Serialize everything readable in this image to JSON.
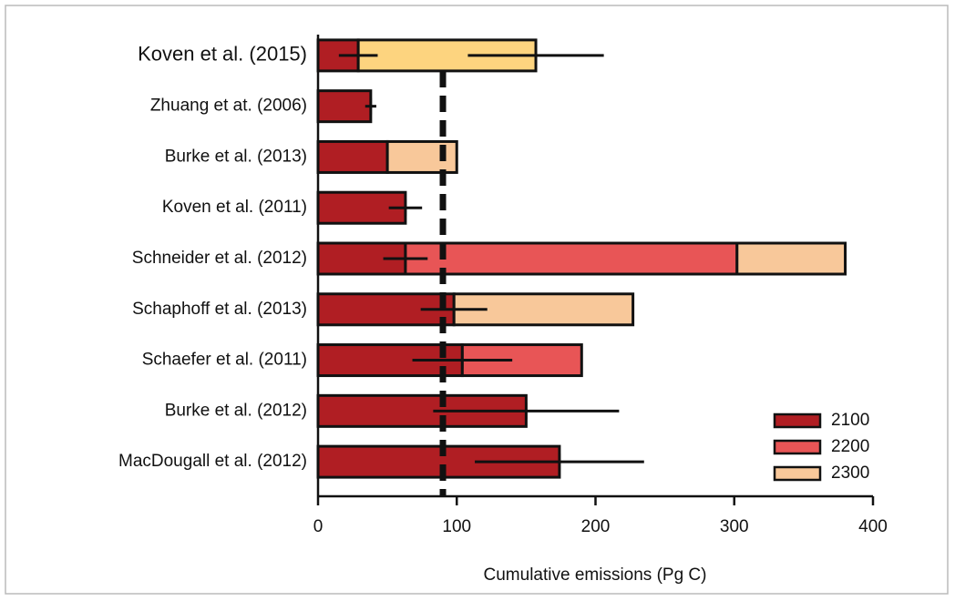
{
  "chart_data": {
    "type": "stacked-hbar",
    "x_label": "Cumulative emissions (Pg C)",
    "categories": [
      "Koven et al. (2015)",
      "Zhuang et at. (2006)",
      "Burke et al. (2013)",
      "Koven et al. (2011)",
      "Schneider et al. (2012)",
      "Schaphoff et al. (2013)",
      "Schaefer et al. (2011)",
      "Burke et al. (2012)",
      "MacDougall et al. (2012)"
    ],
    "series": [
      {
        "name": "2100",
        "color": "#b01e23",
        "values": [
          29,
          38,
          50,
          63,
          63,
          98,
          104,
          150,
          174
        ],
        "errors": [
          14,
          4,
          null,
          12,
          16,
          24,
          36,
          67,
          61
        ]
      },
      {
        "name": "2200",
        "color": "#e85556",
        "values": [
          null,
          null,
          null,
          null,
          239,
          null,
          86,
          null,
          null
        ],
        "errors": [
          null,
          null,
          null,
          null,
          null,
          null,
          null,
          null,
          null
        ]
      },
      {
        "name": "2300",
        "color": "#f8c89a",
        "point_colors": [
          "#fdd47f",
          null,
          null,
          null,
          null,
          null,
          null,
          null,
          null
        ],
        "values": [
          128,
          null,
          50,
          null,
          78,
          129,
          null,
          null,
          null
        ],
        "errors": [
          49,
          null,
          null,
          null,
          null,
          null,
          null,
          null,
          null
        ]
      }
    ],
    "reference_line": 90,
    "xlim": [
      0,
      400
    ],
    "xticks": [
      0,
      100,
      200,
      300,
      400
    ],
    "legend": "bottom-right"
  }
}
